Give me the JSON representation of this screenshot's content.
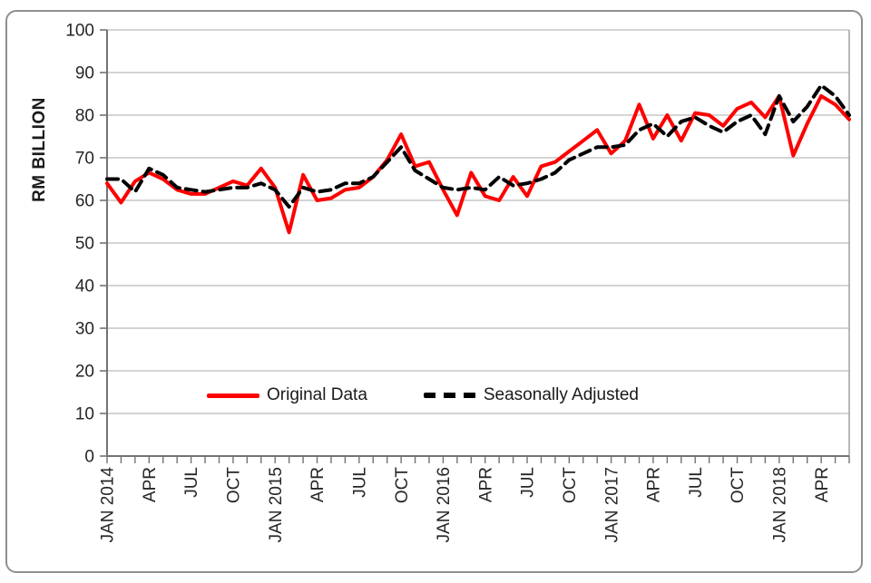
{
  "y_axis_title": "RM BILLION",
  "legend": {
    "original_label": "Original Data",
    "adjusted_label": "Seasonally Adjusted"
  },
  "colors": {
    "original_series": "#fe0000",
    "adjusted_series": "#000000",
    "gridline": "#c6c6c6",
    "axis": "#737373",
    "plot_right_border": "#a6a6a6",
    "text": "#262626",
    "outer_border": "#8f8f8f"
  },
  "chart_data": {
    "type": "line",
    "title": "",
    "ylabel": "RM BILLION",
    "xlabel": "",
    "ylim": [
      0,
      100
    ],
    "y_ticks": [
      0,
      10,
      20,
      30,
      40,
      50,
      60,
      70,
      80,
      90,
      100
    ],
    "grid": true,
    "legend_position": "inside-bottom",
    "x_months_count": 54,
    "x_range": "JAN 2014 to JUN 2018, monthly",
    "x_tick_label_every_n_months": 3,
    "x_tick_labels": [
      "JAN 2014",
      "APR",
      "JUL",
      "OCT",
      "JAN 2015",
      "APR",
      "JUL",
      "OCT",
      "JAN 2016",
      "APR",
      "JUL",
      "OCT",
      "JAN 2017",
      "APR",
      "JUL",
      "OCT",
      "JAN 2018",
      "APR"
    ],
    "series": [
      {
        "name": "Original Data",
        "style": "solid",
        "color": "#fe0000",
        "values": [
          64,
          59.5,
          64.5,
          66.5,
          65,
          62.5,
          61.5,
          61.5,
          63,
          64.5,
          63.5,
          67.5,
          63,
          52.5,
          66,
          60,
          60.5,
          62.5,
          63,
          65.5,
          69.5,
          75.5,
          68,
          69,
          62.5,
          56.5,
          66.5,
          61,
          60,
          65.5,
          61,
          68,
          69,
          71.5,
          74,
          76.5,
          71,
          74,
          82.5,
          74.5,
          80,
          74,
          80.5,
          80,
          77.5,
          81.5,
          83,
          79.5,
          84.5,
          70.5,
          78,
          84.5,
          82.5,
          79
        ]
      },
      {
        "name": "Seasonally Adjusted",
        "style": "dashed",
        "color": "#000000",
        "values": [
          65,
          65,
          62,
          67.5,
          66,
          63,
          62.5,
          62,
          62.5,
          63,
          63,
          64,
          62.5,
          58.5,
          63,
          62,
          62.5,
          64,
          64,
          65.5,
          69,
          72.5,
          67,
          65,
          63,
          62.5,
          63,
          62.5,
          65.5,
          63.5,
          64,
          65,
          66.5,
          69.5,
          71,
          72.5,
          72.5,
          73,
          76.5,
          78,
          75,
          78.5,
          79.5,
          77.5,
          76,
          78.5,
          80,
          75.5,
          84.5,
          78.5,
          82,
          87,
          84.5,
          80
        ]
      }
    ]
  }
}
